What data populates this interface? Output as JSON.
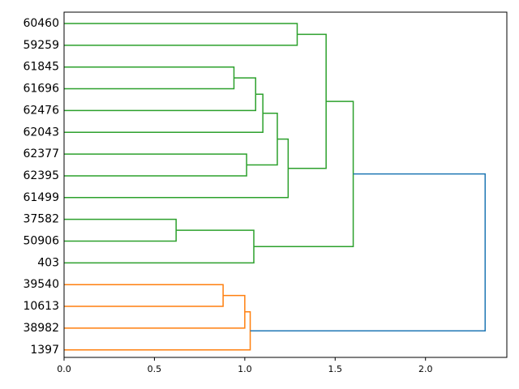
{
  "chart_data": {
    "type": "dendrogram",
    "orientation": "horizontal",
    "title": "",
    "xlabel": "",
    "ylabel": "",
    "xlim": [
      0,
      2.45
    ],
    "x_ticks": [
      0.0,
      0.5,
      1.0,
      1.5,
      2.0
    ],
    "x_tick_labels": [
      "0.0",
      "0.5",
      "1.0",
      "1.5",
      "2.0"
    ],
    "grid": false,
    "legend": "none",
    "leaves": [
      "60460",
      "59259",
      "61845",
      "61696",
      "62476",
      "62043",
      "62377",
      "62395",
      "61499",
      "37582",
      "50906",
      "403",
      "39540",
      "10613",
      "38982",
      "1397"
    ],
    "colors": {
      "cluster_1": "#2ca02c",
      "cluster_2": "#ff7f0e",
      "above_threshold": "#1f77b4"
    },
    "merges": [
      {
        "id": "m1",
        "children": [
          "60460",
          "59259"
        ],
        "height": 1.29,
        "color": "cluster_1"
      },
      {
        "id": "m2",
        "children": [
          "61845",
          "61696"
        ],
        "height": 0.94,
        "color": "cluster_1"
      },
      {
        "id": "m3",
        "children": [
          "m2",
          "62476"
        ],
        "height": 1.06,
        "color": "cluster_1"
      },
      {
        "id": "m4",
        "children": [
          "m3",
          "62043"
        ],
        "height": 1.1,
        "color": "cluster_1"
      },
      {
        "id": "m5",
        "children": [
          "62377",
          "62395"
        ],
        "height": 1.01,
        "color": "cluster_1"
      },
      {
        "id": "m6",
        "children": [
          "m4",
          "m5"
        ],
        "height": 1.18,
        "color": "cluster_1"
      },
      {
        "id": "m7",
        "children": [
          "m6",
          "61499"
        ],
        "height": 1.24,
        "color": "cluster_1"
      },
      {
        "id": "m8",
        "children": [
          "m1",
          "m7"
        ],
        "height": 1.45,
        "color": "cluster_1"
      },
      {
        "id": "m9",
        "children": [
          "37582",
          "50906"
        ],
        "height": 0.62,
        "color": "cluster_1"
      },
      {
        "id": "m10",
        "children": [
          "m9",
          "403"
        ],
        "height": 1.05,
        "color": "cluster_1"
      },
      {
        "id": "m11",
        "children": [
          "m8",
          "m10"
        ],
        "height": 1.6,
        "color": "cluster_1"
      },
      {
        "id": "m12",
        "children": [
          "39540",
          "10613"
        ],
        "height": 0.88,
        "color": "cluster_2"
      },
      {
        "id": "m13",
        "children": [
          "m12",
          "38982"
        ],
        "height": 1.0,
        "color": "cluster_2"
      },
      {
        "id": "m14",
        "children": [
          "m13",
          "1397"
        ],
        "height": 1.03,
        "color": "cluster_2"
      },
      {
        "id": "m15",
        "children": [
          "m11",
          "m14"
        ],
        "height": 2.33,
        "color": "above_threshold"
      }
    ]
  }
}
